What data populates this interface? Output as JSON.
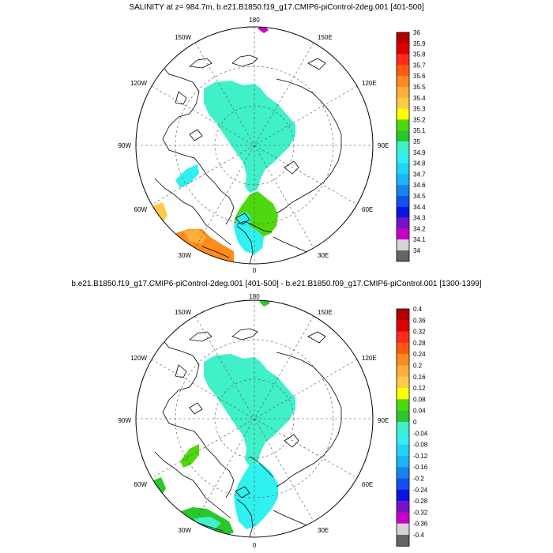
{
  "charts": [
    {
      "title": "SALINITY at z= 984.7m, b.e21.B1850.f19_g17.CMIP6-piControl-2deg.001 [401-500]",
      "lon_labels": [
        "180",
        "150E",
        "120E",
        "90E",
        "60E",
        "30E",
        "0",
        "30W",
        "60W",
        "90W",
        "120W",
        "150W"
      ],
      "colorbar_labels": [
        "36",
        "35.9",
        "35.8",
        "35.7",
        "35.6",
        "35.5",
        "35.4",
        "35.3",
        "35.2",
        "35.1",
        "35",
        "34.9",
        "34.8",
        "34.7",
        "34.6",
        "34.5",
        "34.4",
        "34.3",
        "34.2",
        "34.1",
        "34"
      ],
      "colorbar_colors": [
        "#b40000",
        "#e00000",
        "#ff2a1a",
        "#ff5a14",
        "#ff8a1e",
        "#ffae3a",
        "#ffca4a",
        "#ffff00",
        "#4ed80e",
        "#28c828",
        "#40f0c8",
        "#30f0f0",
        "#20d4f8",
        "#1ab4f8",
        "#1484f0",
        "#1450f0",
        "#0a14e0",
        "#7810c8",
        "#c800c8",
        "#d4d4d4",
        "#646464"
      ]
    },
    {
      "title": "b.e21.B1850.f19_g17.CMIP6-piControl-2deg.001 [401-500] - b.e21.B1850.f09_g17.CMIP6-piControl.001 [1300-1399]",
      "lon_labels": [
        "180",
        "150E",
        "120E",
        "90E",
        "60E",
        "30E",
        "0",
        "30W",
        "60W",
        "90W",
        "120W",
        "150W"
      ],
      "colorbar_labels": [
        "0.4",
        "0.36",
        "0.32",
        "0.28",
        "0.24",
        "0.2",
        "0.16",
        "0.12",
        "0.08",
        "0.04",
        "0",
        "-0.04",
        "-0.08",
        "-0.12",
        "-0.16",
        "-0.2",
        "-0.24",
        "-0.28",
        "-0.32",
        "-0.36",
        "-0.4"
      ],
      "colorbar_colors": [
        "#b40000",
        "#e00000",
        "#ff2a1a",
        "#ff5a14",
        "#ff8a1e",
        "#ffae3a",
        "#ffca4a",
        "#ffff00",
        "#4ed80e",
        "#28c828",
        "#40f0c8",
        "#30f0f0",
        "#20d4f8",
        "#1ab4f8",
        "#1484f0",
        "#1450f0",
        "#0a14e0",
        "#7810c8",
        "#c800c8",
        "#d4d4d4",
        "#646464"
      ]
    }
  ],
  "chart_data": [
    {
      "type": "heatmap",
      "projection": "north-polar-stereographic",
      "title": "SALINITY at z= 984.7m, b.e21.B1850.f19_g17.CMIP6-piControl-2deg.001 [401-500]",
      "variable": "SALINITY",
      "depth_m": 984.7,
      "colorbar_min": 34,
      "colorbar_max": 36,
      "colorbar_step": 0.1,
      "dominant_field": {
        "arctic_ocean": "34.9-35",
        "nordic_seas": "35.1-35.2",
        "north_atlantic_east": "35.6-35.7",
        "north_atlantic_west": "35.3-35.4"
      }
    },
    {
      "type": "heatmap",
      "projection": "north-polar-stereographic",
      "title": "b.e21.B1850.f19_g17.CMIP6-piControl-2deg.001 [401-500] - b.e21.B1850.f09_g17.CMIP6-piControl.001 [1300-1399]",
      "variable": "SALINITY difference",
      "colorbar_min": -0.4,
      "colorbar_max": 0.4,
      "colorbar_step": 0.04,
      "dominant_field": {
        "arctic_ocean": "-0.04-0",
        "nordic_seas": "-0.08--0.04",
        "labrador_sea": "0.04-0.08",
        "north_atlantic_east": "0.04-0.08"
      }
    }
  ]
}
